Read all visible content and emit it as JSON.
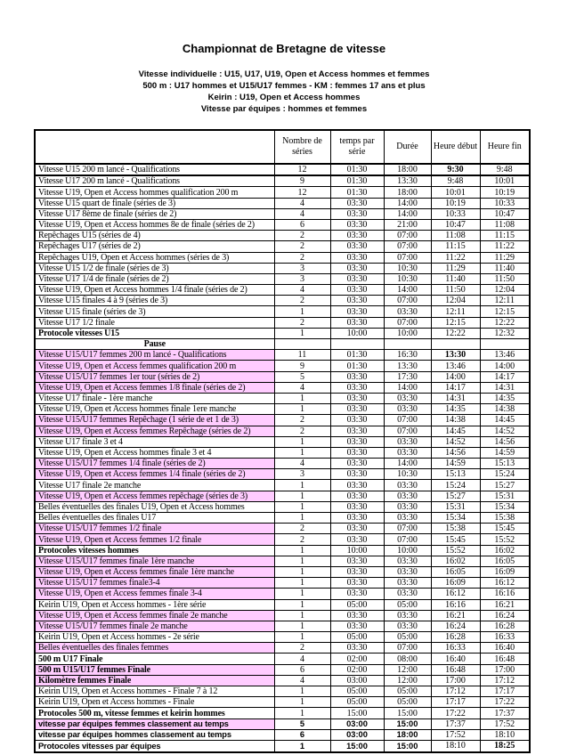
{
  "doc": {
    "title": "Championnat de Bretagne de vitesse",
    "subtitles": [
      "Vitesse individuelle : U15, U17, U19, Open et Access hommes et femmes",
      "500 m : U17 hommes et U15/U17 femmes - KM : femmes 17 ans et plus",
      "Keirin :  U19, Open et Access hommes",
      "Vitesse par équipes : hommes et femmes"
    ]
  },
  "colors": {
    "highlight_pink": "#FFCCFF",
    "border": "#000000",
    "text": "#000000"
  },
  "table": {
    "columns": [
      "",
      "Nombre de séries",
      "temps par série",
      "Durée",
      "Heure début",
      "Heure fin"
    ],
    "rows": [
      {
        "label": "Vitesse U15 200 m lancé - Qualifications",
        "series": "12",
        "per": "01:30",
        "duration": "18:00",
        "start": "9:30",
        "end": "9:48",
        "bold_start": true,
        "thick": true
      },
      {
        "label": "Vitesse U17 200 m lancé - Qualifications",
        "series": "9",
        "per": "01:30",
        "duration": "13:30",
        "start": "9:48",
        "end": "10:01"
      },
      {
        "label": "Vitesse U19, Open et Access hommes qualification 200 m",
        "series": "12",
        "per": "01:30",
        "duration": "18:00",
        "start": "10:01",
        "end": "10:19"
      },
      {
        "label": "Vitesse U15 quart de finale (séries de 3)",
        "series": "4",
        "per": "03:30",
        "duration": "14:00",
        "start": "10:19",
        "end": "10:33"
      },
      {
        "label": "Vitesse U17 8ème de finale (séries de 2)",
        "series": "4",
        "per": "03:30",
        "duration": "14:00",
        "start": "10:33",
        "end": "10:47"
      },
      {
        "label": "Vitesse U19, Open et Access hommes 8e de finale (séries de 2)",
        "series": "6",
        "per": "03:30",
        "duration": "21:00",
        "start": "10:47",
        "end": "11:08"
      },
      {
        "label": "Repêchages U15 (séries de 4)",
        "series": "2",
        "per": "03:30",
        "duration": "07:00",
        "start": "11:08",
        "end": "11:15"
      },
      {
        "label": "Repêchages U17 (séries de 2)",
        "series": "2",
        "per": "03:30",
        "duration": "07:00",
        "start": "11:15",
        "end": "11:22"
      },
      {
        "label": "Repêchages U19, Open et Access hommes (séries de 3)",
        "series": "2",
        "per": "03:30",
        "duration": "07:00",
        "start": "11:22",
        "end": "11:29"
      },
      {
        "label": "Vitesse U15 1/2 de finale (séries de 3)",
        "series": "3",
        "per": "03:30",
        "duration": "10:30",
        "start": "11:29",
        "end": "11:40"
      },
      {
        "label": "Vitesse U17 1/4 de finale (séries de 2)",
        "series": "3",
        "per": "03:30",
        "duration": "10:30",
        "start": "11:40",
        "end": "11:50"
      },
      {
        "label": "Vitesse U19, Open et Access hommes 1/4 finale (séries de 2)",
        "series": "4",
        "per": "03:30",
        "duration": "14:00",
        "start": "11:50",
        "end": "12:04"
      },
      {
        "label": "Vitesse U15 finales 4 à 9 (séries de 3)",
        "series": "2",
        "per": "03:30",
        "duration": "07:00",
        "start": "12:04",
        "end": "12:11"
      },
      {
        "label": "Vitesse U15 finale  (séries de 3)",
        "series": "1",
        "per": "03:30",
        "duration": "03:30",
        "start": "12:11",
        "end": "12:15"
      },
      {
        "label": "Vitesse U17 1/2 finale",
        "series": "2",
        "per": "03:30",
        "duration": "07:00",
        "start": "12:15",
        "end": "12:22"
      },
      {
        "label": "Protocole vitesses U15",
        "bold": true,
        "series": "1",
        "per": "10:00",
        "duration": "10:00",
        "start": "12:22",
        "end": "12:32"
      },
      {
        "label": "Pause",
        "pause": true,
        "bold": true,
        "series": "",
        "per": "",
        "duration": "",
        "start": "",
        "end": ""
      },
      {
        "label": "Vitesse U15/U17 femmes 200 m lancé - Qualifications",
        "pink": true,
        "series": "11",
        "per": "01:30",
        "duration": "16:30",
        "start": "13:30",
        "end": "13:46",
        "bold_start": true
      },
      {
        "label": "Vitesse U19, Open et Access femmes qualification 200 m",
        "pink": true,
        "series": "9",
        "per": "01:30",
        "duration": "13:30",
        "start": "13:46",
        "end": "14:00"
      },
      {
        "label": "Vitesse U15/U17 femmes 1er tour (séries de 2)",
        "pink": true,
        "series": "5",
        "per": "03:30",
        "duration": "17:30",
        "start": "14:00",
        "end": "14:17"
      },
      {
        "label": "Vitesse U19, Open et Access femmes 1/8 finale (séries de 2)",
        "pink": true,
        "series": "4",
        "per": "03:30",
        "duration": "14:00",
        "start": "14:17",
        "end": "14:31"
      },
      {
        "label": "Vitesse U17 finale - 1ère manche",
        "series": "1",
        "per": "03:30",
        "duration": "03:30",
        "start": "14:31",
        "end": "14:35"
      },
      {
        "label": "Vitesse U19, Open et Access hommes finale 1ere manche",
        "series": "1",
        "per": "03:30",
        "duration": "03:30",
        "start": "14:35",
        "end": "14:38"
      },
      {
        "label": "Vitesse U15/U17 femmes Repêchage (1 série de  et 1 de 3)",
        "pink": true,
        "series": "2",
        "per": "03:30",
        "duration": "07:00",
        "start": "14:38",
        "end": "14:45"
      },
      {
        "label": "Vitesse U19, Open et Access femmes Repêchage (séries de 2)",
        "pink": true,
        "series": "2",
        "per": "03:30",
        "duration": "07:00",
        "start": "14:45",
        "end": "14:52"
      },
      {
        "label": "Vitesse U17 finale 3 et 4",
        "series": "1",
        "per": "03:30",
        "duration": "03:30",
        "start": "14:52",
        "end": "14:56"
      },
      {
        "label": "Vitesse U19, Open et Access hommes finale  3 et 4",
        "series": "1",
        "per": "03:30",
        "duration": "03:30",
        "start": "14:56",
        "end": "14:59"
      },
      {
        "label": "Vitesse U15/U17 femmes 1/4 finale (séries de 2)",
        "pink": true,
        "series": "4",
        "per": "03:30",
        "duration": "14:00",
        "start": "14:59",
        "end": "15:13"
      },
      {
        "label": "Vitesse U19, Open et Access femmes 1/4 finale (séries de 2)",
        "pink": true,
        "series": "3",
        "per": "03:30",
        "duration": "10:30",
        "start": "15:13",
        "end": "15:24"
      },
      {
        "label": "Vitesse U17 finale 2e  manche",
        "series": "1",
        "per": "03:30",
        "duration": "03:30",
        "start": "15:24",
        "end": "15:27"
      },
      {
        "label": "Vitesse U19, Open et Access femmes repêchage (séries de 3)",
        "pink": true,
        "series": "1",
        "per": "03:30",
        "duration": "03:30",
        "start": "15:27",
        "end": "15:31"
      },
      {
        "label": "Belles éventuelles des finales U19, Open et Access hommes",
        "series": "1",
        "per": "03:30",
        "duration": "03:30",
        "start": "15:31",
        "end": "15:34"
      },
      {
        "label": "Belles éventuelles des  finales  U17",
        "series": "1",
        "per": "03:30",
        "duration": "03:30",
        "start": "15:34",
        "end": "15:38"
      },
      {
        "label": "Vitesse U15/U17 femmes 1/2  finale",
        "pink": true,
        "series": "2",
        "per": "03:30",
        "duration": "07:00",
        "start": "15:38",
        "end": "15:45"
      },
      {
        "label": "Vitesse U19, Open et Access femmes 1/2 finale",
        "pink": true,
        "series": "2",
        "per": "03:30",
        "duration": "07:00",
        "start": "15:45",
        "end": "15:52"
      },
      {
        "label": "Protocoles vitesses hommes",
        "bold": true,
        "series": "1",
        "per": "10:00",
        "duration": "10:00",
        "start": "15:52",
        "end": "16:02"
      },
      {
        "label": "Vitesse U15/U17 femmes  finale 1ère manche",
        "pink": true,
        "series": "1",
        "per": "03:30",
        "duration": "03:30",
        "start": "16:02",
        "end": "16:05"
      },
      {
        "label": "Vitesse U19, Open et Access femmes  finale 1ère manche",
        "pink": true,
        "series": "1",
        "per": "03:30",
        "duration": "03:30",
        "start": "16:05",
        "end": "16:09"
      },
      {
        "label": "Vitesse U15/U17 femmes  finale3-4",
        "pink": true,
        "series": "1",
        "per": "03:30",
        "duration": "03:30",
        "start": "16:09",
        "end": "16:12"
      },
      {
        "label": "Vitesse U19, Open et Access femmes  finale  3-4",
        "pink": true,
        "series": "1",
        "per": "03:30",
        "duration": "03:30",
        "start": "16:12",
        "end": "16:16"
      },
      {
        "label": "Keirin U19, Open et Access hommes - 1ère série",
        "series": "1",
        "per": "05:00",
        "duration": "05:00",
        "start": "16:16",
        "end": "16:21"
      },
      {
        "label": "Vitesse U19, Open et Access femmes  finale 2e manche",
        "pink": true,
        "series": "1",
        "per": "03:30",
        "duration": "03:30",
        "start": "16:21",
        "end": "16:24"
      },
      {
        "label": "Vitesse U15/U17 femmes  finale 2e manche",
        "pink": true,
        "series": "1",
        "per": "03:30",
        "duration": "03:30",
        "start": "16:24",
        "end": "16:28"
      },
      {
        "label": "Keirin U19, Open et Access hommes - 2e série",
        "series": "1",
        "per": "05:00",
        "duration": "05:00",
        "start": "16:28",
        "end": "16:33"
      },
      {
        "label": "Belles éventuelles des finales femmes",
        "pink": true,
        "series": "2",
        "per": "03:30",
        "duration": "07:00",
        "start": "16:33",
        "end": "16:40"
      },
      {
        "label": "500 m U17 Finale",
        "bold": true,
        "series": "4",
        "per": "02:00",
        "duration": "08:00",
        "start": "16:40",
        "end": "16:48"
      },
      {
        "label": "500 m U15/U17 femmes Finale",
        "bold": true,
        "pink": true,
        "series": "6",
        "per": "02:00",
        "duration": "12:00",
        "start": "16:48",
        "end": "17:00"
      },
      {
        "label": "Kilomètre femmes Finale",
        "bold": true,
        "pink": true,
        "series": "4",
        "per": "03:00",
        "duration": "12:00",
        "start": "17:00",
        "end": "17:12"
      },
      {
        "label": "Keirin U19, Open et Access hommes - Finale  7 à 12",
        "series": "1",
        "per": "05:00",
        "duration": "05:00",
        "start": "17:12",
        "end": "17:17"
      },
      {
        "label": "Keirin U19, Open et Access hommes - Finale",
        "series": "1",
        "per": "05:00",
        "duration": "05:00",
        "start": "17:17",
        "end": "17:22"
      },
      {
        "label": "Protocoles 500 m, vitesse femmes et keirin hommes",
        "bold": true,
        "series": "1",
        "per": "15:00",
        "duration": "15:00",
        "start": "17:22",
        "end": "17:37"
      },
      {
        "label": "vitesse par équipes femmes classement au temps",
        "sans": true,
        "bold": true,
        "pink": true,
        "series": "5",
        "per": "03:00",
        "duration": "15:00",
        "start": "17:37",
        "end": "17:52"
      },
      {
        "label": "vitesse par équipes hommes classement au temps",
        "sans": true,
        "bold": true,
        "series": "6",
        "per": "03:00",
        "duration": "18:00",
        "start": "17:52",
        "end": "18:10"
      },
      {
        "label": "Protocoles vitesses par équipes",
        "sans": true,
        "bold": true,
        "series": "1",
        "per": "15:00",
        "duration": "15:00",
        "start": "18:10",
        "end": "18:25",
        "bold_end": true
      }
    ]
  }
}
